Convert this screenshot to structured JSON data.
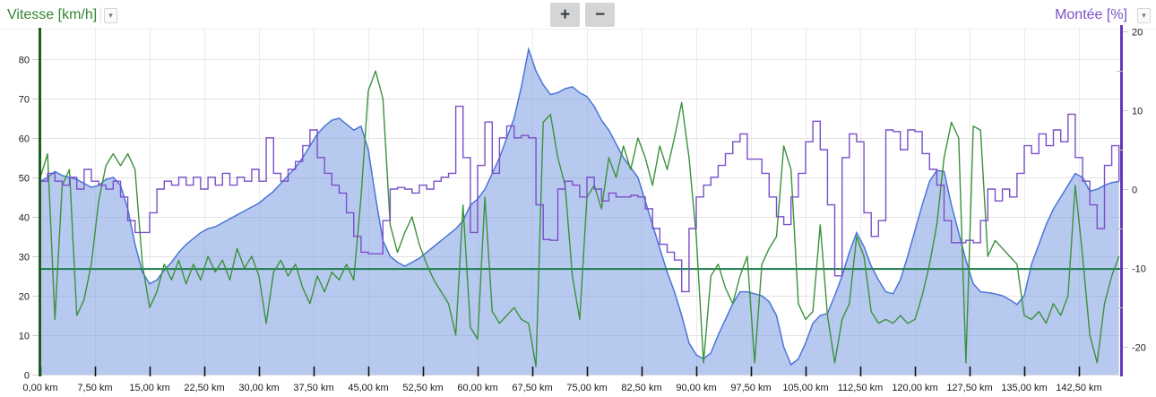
{
  "header": {
    "left_series_label": "Vitesse [km/h]",
    "right_series_label": "Montée [%]",
    "left_label_color": "#328632",
    "right_label_color": "#7a52c8",
    "zoom_in_label": "+",
    "zoom_out_label": "−"
  },
  "icons": {
    "caret_down": "▾"
  },
  "chart_data": {
    "type": "line",
    "title": "",
    "x_unit": "km",
    "x_tick_labels": [
      "0,00 km",
      "7,50 km",
      "15,00 km",
      "22,50 km",
      "30,00 km",
      "37,50 km",
      "45,00 km",
      "52,50 km",
      "60,00 km",
      "67,50 km",
      "75,00 km",
      "82,50 km",
      "90,00 km",
      "97,50 km",
      "105,00 km",
      "112,50 km",
      "120,00 km",
      "127,50 km",
      "135,00 km",
      "142,50 km"
    ],
    "x_tick_values": [
      0,
      7.5,
      15,
      22.5,
      30,
      37.5,
      45,
      52.5,
      60,
      67.5,
      75,
      82.5,
      90,
      97.5,
      105,
      112.5,
      120,
      127.5,
      135,
      142.5
    ],
    "x_range_km": [
      0,
      148
    ],
    "left_axis": {
      "label": "Vitesse [km/h]",
      "color": "#1d5c1d",
      "ticks": [
        80,
        70,
        60,
        50,
        40,
        30,
        20,
        10,
        0
      ],
      "range": [
        0,
        88
      ]
    },
    "right_axis": {
      "label": "Montée [%]",
      "color": "#6636bb",
      "ticks": [
        20,
        10,
        0,
        -10,
        -20
      ],
      "minor_ticks": [
        15,
        5,
        -5,
        -15
      ],
      "range": [
        -23.5,
        20.5
      ]
    },
    "grid": true,
    "legend_position": "top",
    "series": [
      {
        "name": "altitude-profile",
        "render": "area",
        "axis": "left",
        "stroke": "#4a75d6",
        "fill": "#7d9ce4",
        "fill_opacity": 0.55,
        "x_step_km": 1,
        "values": [
          49,
          50,
          51.5,
          50.5,
          50,
          49.5,
          48.5,
          47.5,
          48,
          49.5,
          50,
          48,
          42,
          33,
          26,
          23,
          24,
          26.5,
          28.5,
          31,
          33,
          34.5,
          36,
          37,
          37.5,
          38.5,
          39.5,
          40.5,
          41.5,
          42.5,
          43.5,
          45,
          46.5,
          48.5,
          50.5,
          52.5,
          55,
          58,
          61,
          63,
          64.5,
          65,
          63.5,
          62,
          63,
          57,
          45,
          34,
          30,
          28.5,
          27.5,
          28.5,
          29.5,
          31,
          32.5,
          34,
          35.5,
          37,
          39,
          43,
          44.5,
          47,
          51,
          55,
          60,
          65,
          73,
          82.5,
          77,
          73.5,
          71,
          71.5,
          72.5,
          73,
          71.5,
          70.5,
          68,
          64.5,
          62,
          58.5,
          55,
          52.5,
          50,
          44,
          38,
          32,
          26,
          21,
          15,
          8,
          5,
          4,
          5.5,
          10,
          14,
          18,
          21,
          21,
          20.5,
          20,
          18.5,
          15,
          7,
          2.5,
          4,
          8,
          13,
          15,
          15.5,
          20,
          25,
          31,
          36,
          32.5,
          27.5,
          24,
          21,
          20.5,
          24,
          30,
          36.5,
          43,
          49,
          51.8,
          51.5,
          43,
          36,
          29,
          23,
          21,
          20.8,
          20.5,
          20,
          19,
          17.8,
          20,
          28,
          33,
          38,
          42,
          45,
          48,
          51,
          50,
          46.5,
          47,
          48,
          48.7,
          49
        ]
      },
      {
        "name": "vitesse-moyenne",
        "render": "hline",
        "axis": "left",
        "stroke": "#1a7a4a",
        "value": 26.8
      },
      {
        "name": "vitesse",
        "render": "line",
        "axis": "left",
        "stroke": "#3a923a",
        "x_step_km": 1,
        "values": [
          50,
          56,
          14,
          48,
          52,
          15,
          19,
          28,
          44,
          53,
          56,
          53,
          56,
          52,
          28,
          17,
          21,
          28,
          24,
          29,
          23,
          28,
          24,
          30,
          26,
          29,
          24,
          32,
          27,
          30,
          25,
          13,
          26,
          29,
          25,
          28,
          22,
          18,
          25,
          21,
          26,
          24,
          28,
          24,
          45,
          72,
          77,
          70,
          38,
          31,
          36,
          40,
          33,
          28,
          24,
          21,
          18,
          10,
          43,
          12,
          9,
          45,
          16,
          13,
          15,
          17,
          14,
          13,
          2,
          64,
          66,
          55,
          48,
          25,
          14,
          45,
          48,
          42,
          55,
          50,
          58,
          52,
          60,
          55,
          48,
          58,
          52,
          60,
          69,
          55,
          35,
          3,
          25,
          28,
          22,
          18,
          25,
          30,
          3,
          28,
          32,
          35,
          58,
          52,
          18,
          14,
          16,
          38,
          15,
          3,
          14,
          18,
          35,
          30,
          16,
          13,
          14,
          13,
          15,
          13,
          14,
          20,
          28,
          38,
          55,
          64,
          60,
          3,
          63,
          62,
          30,
          34,
          32,
          30,
          28,
          15,
          14,
          16,
          13,
          18,
          15,
          20,
          48,
          30,
          10,
          3,
          18,
          25,
          30
        ]
      },
      {
        "name": "montee",
        "render": "step",
        "axis": "right",
        "stroke": "#7a4fc9",
        "x_step_km": 1,
        "values": [
          1,
          2,
          1,
          0.5,
          1.5,
          0,
          2.5,
          1,
          0.5,
          0,
          1,
          -1,
          -4,
          -5.5,
          -5.5,
          -3,
          0,
          1,
          0.5,
          1.5,
          0.5,
          1.5,
          0,
          1.5,
          0.5,
          2,
          0.5,
          1.5,
          1,
          2.5,
          1,
          6.5,
          2,
          1,
          2.5,
          3.5,
          5.5,
          7.5,
          4,
          2,
          0.5,
          -0.5,
          -3,
          -6,
          -8,
          -8.2,
          -8.2,
          -4,
          0,
          0.2,
          0,
          -0.5,
          0.5,
          0,
          1,
          1.5,
          2,
          10.5,
          4,
          -5.5,
          3,
          8.5,
          2,
          6.5,
          8,
          6.5,
          6.8,
          6.5,
          -2,
          -6.4,
          -6.5,
          0,
          1,
          0.5,
          -1,
          1.5,
          0,
          -1.5,
          -0.5,
          -1,
          -1,
          -0.8,
          -1,
          -2.5,
          -5,
          -7,
          -8,
          -9,
          -13,
          -5,
          -1,
          0.5,
          1.5,
          3,
          4.5,
          6,
          7,
          3.8,
          3.8,
          2,
          -1,
          -3.5,
          -4.5,
          -1,
          2,
          6,
          8.6,
          5,
          -2,
          -11,
          4,
          7,
          6,
          -3,
          -6,
          -4,
          7.5,
          7.3,
          5,
          7.5,
          7.3,
          4.5,
          2.5,
          0.5,
          -4,
          -6.8,
          -6.8,
          -6.5,
          -6.8,
          -4,
          0,
          -1.5,
          0,
          -1,
          2,
          5.5,
          4.5,
          7,
          5.5,
          7.5,
          6,
          9.5,
          4,
          1,
          -2,
          -5,
          3,
          5.5,
          1
        ]
      }
    ]
  }
}
